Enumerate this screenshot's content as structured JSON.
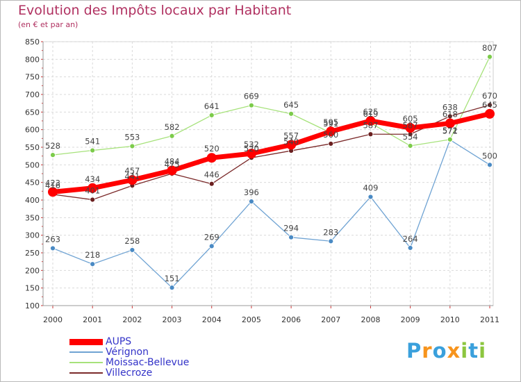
{
  "chart_data": {
    "type": "line",
    "title": "Evolution des Impôts locaux par Habitant",
    "subtitle": "(en € et par an)",
    "categories": [
      "2000",
      "2001",
      "2002",
      "2003",
      "2004",
      "2005",
      "2006",
      "2007",
      "2008",
      "2009",
      "2010",
      "2011"
    ],
    "ylim": [
      100,
      850
    ],
    "yticks": [
      100,
      150,
      200,
      250,
      300,
      350,
      400,
      450,
      500,
      550,
      600,
      650,
      700,
      750,
      800,
      850
    ],
    "grid": true,
    "legend_position": "bottom-left",
    "series": [
      {
        "name": "AUPS",
        "color": "#ff0000",
        "point_color": "#ff0000",
        "width": 7,
        "radius": 7,
        "values": [
          423,
          434,
          457,
          484,
          520,
          532,
          557,
          595,
          625,
          605,
          618,
          645
        ],
        "labels": [
          "423",
          "434",
          "457",
          "484",
          "520",
          "532",
          "557",
          "595",
          "625",
          "605",
          "618",
          "645"
        ]
      },
      {
        "name": "Vérignon",
        "color": "#6fa3d3",
        "point_color": "#4a8ac4",
        "width": 1.3,
        "radius": 3.5,
        "values": [
          263,
          218,
          258,
          151,
          269,
          396,
          294,
          283,
          409,
          264,
          571,
          500
        ],
        "labels": [
          "263",
          "218",
          "258",
          "151",
          "269",
          "396",
          "294",
          "283",
          "409",
          "264",
          "571",
          "500"
        ]
      },
      {
        "name": "Moissac-Bellevue",
        "color": "#a6e27a",
        "point_color": "#7ccb4a",
        "width": 1.3,
        "radius": 3.5,
        "values": [
          528,
          541,
          553,
          582,
          641,
          669,
          645,
          591,
          619,
          554,
          572,
          807
        ],
        "labels": [
          "528",
          "541",
          "553",
          "582",
          "641",
          "669",
          "645",
          "591",
          "619",
          "554",
          "572",
          "807"
        ]
      },
      {
        "name": "Villecroze",
        "color": "#7b2a2a",
        "point_color": "#6a1f1f",
        "width": 1.3,
        "radius": 3.5,
        "values": [
          416,
          401,
          441,
          475,
          446,
          520,
          540,
          560,
          587,
          587,
          638,
          670
        ],
        "labels": [
          "416",
          "401",
          "441",
          "475",
          "446",
          "520",
          "540",
          "560",
          "587",
          "587",
          "638",
          "670"
        ]
      }
    ]
  },
  "logo": {
    "letters": [
      "P",
      "r",
      "o",
      "x",
      "i",
      "t",
      "i"
    ],
    "colors": [
      "#3aa0dc",
      "#f7941d",
      "#3aa0dc",
      "#f7941d",
      "#8cc63f",
      "#3aa0dc",
      "#8cc63f"
    ]
  }
}
